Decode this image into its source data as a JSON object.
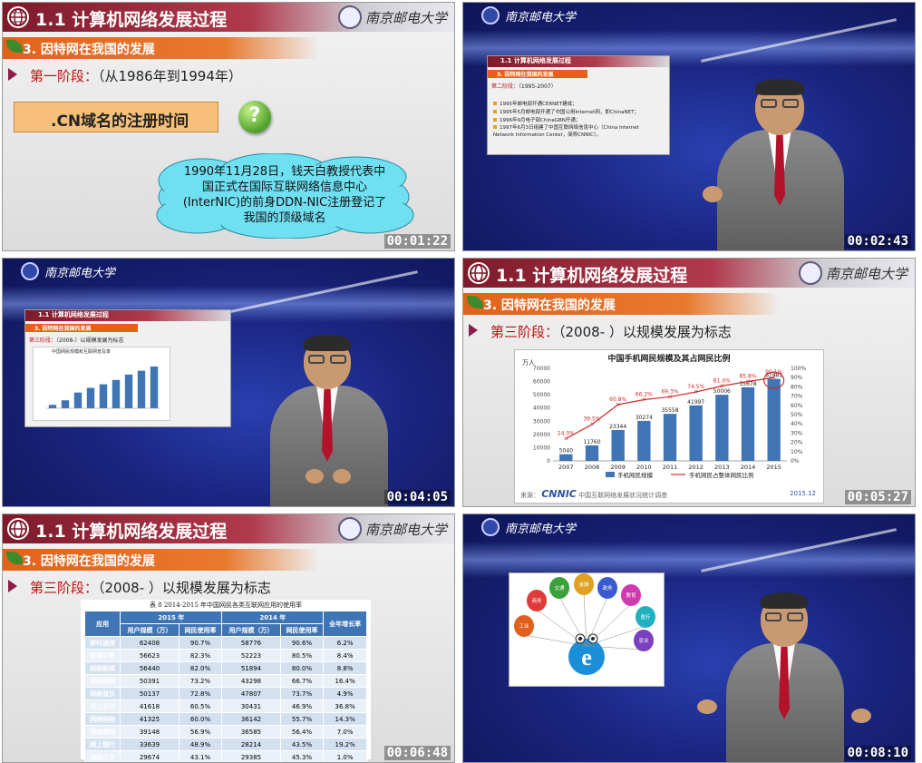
{
  "slide_title": "1.1 计算机网络发展过程",
  "section_title": "3. 因特网在我国的发展",
  "university_name": "南京邮电大学",
  "frames": [
    {
      "timestamp": "00:01:22",
      "stage_label": "第一阶段：",
      "stage_desc": "（从1986年到1994年）",
      "box_text": ".CN域名的注册时间",
      "cloud_text": "1990年11月28日，钱天白教授代表中国正式在国际互联网络信息中心(InterNIC)的前身DDN-NIC注册登记了我国的顶级域名"
    },
    {
      "timestamp": "00:02:43",
      "stage_label": "第二阶段：",
      "stage_desc": "（1995-2007）",
      "bullets": [
        "1995年邮电部开通CERNET建成；",
        "1995年5月邮电部开通了中国公用Internet网，即ChinaNET；",
        "1996年9月电子部ChinaGBN开通；",
        "1997年6月3日组建了中国互联网络信息中心（China Internet Network Information Center，简称CNNIC）。"
      ]
    },
    {
      "timestamp": "00:04:05",
      "stage_label": "第三阶段：",
      "stage_desc": "（2008-）以规模发展为标志",
      "mini_chart_title": "中国网民规模和互联网普及率"
    },
    {
      "timestamp": "00:05:27",
      "stage_label": "第三阶段：",
      "stage_desc": "（2008-  ）以规模发展为标志",
      "source_label": "来源：",
      "source_org": "中国互联网络发展状况统计调查",
      "source_date": "2015.12"
    },
    {
      "timestamp": "00:06:48",
      "stage_label": "第三阶段：",
      "stage_desc": "（2008-  ）以规模发展为标志"
    },
    {
      "timestamp": "00:08:10",
      "balloons": [
        "商务",
        "交通",
        "金融",
        "政务",
        "教育",
        "医疗",
        "工业",
        "农业"
      ]
    }
  ],
  "chart_data": {
    "type": "bar",
    "title": "中国手机网民规模及其占网民比例",
    "ylabel": "万人",
    "categories": [
      "2007",
      "2008",
      "2009",
      "2010",
      "2011",
      "2012",
      "2013",
      "2014",
      "2015"
    ],
    "series": [
      {
        "name": "手机网民规模",
        "type": "bar",
        "values": [
          5040,
          11760,
          23344,
          30274,
          35558,
          41997,
          50006,
          55678,
          61981
        ]
      },
      {
        "name": "手机网民占整体网民比例",
        "type": "line",
        "values": [
          24.0,
          39.5,
          60.8,
          66.2,
          69.3,
          74.5,
          81.0,
          85.8,
          90.1
        ],
        "axis": "right"
      }
    ],
    "y_left": {
      "range": [
        0,
        70000
      ],
      "ticks": [
        "0",
        "10000",
        "20000",
        "30000",
        "40000",
        "50000",
        "60000",
        "70000"
      ]
    },
    "y_right": {
      "range": [
        0,
        100
      ],
      "ticks": [
        "0%",
        "10%",
        "20%",
        "30%",
        "40%",
        "50%",
        "60%",
        "70%",
        "80%",
        "90%",
        "100%"
      ]
    },
    "bar_labels": [
      "5040",
      "11760",
      "23344",
      "30274",
      "35558",
      "41997",
      "50006",
      "55678",
      "61981"
    ],
    "line_labels": [
      "24.0%",
      "39.5%",
      "60.8%",
      "66.2%",
      "69.3%",
      "74.5%",
      "81.0%",
      "85.8%",
      "90.1%"
    ],
    "colors": {
      "bar": "#3f74b5",
      "line": "#d12c2c"
    }
  },
  "usage_table": {
    "caption": "表 8   2014-2015 年中国网民各类互联网应用的使用率",
    "year_headers": [
      "2015 年",
      "2014 年"
    ],
    "col_headers": [
      "应用",
      "用户规模（万）",
      "网民使用率",
      "用户规模（万）",
      "网民使用率",
      "全年增长率"
    ],
    "rows": [
      [
        "即时通信",
        "62408",
        "90.7%",
        "58776",
        "90.6%",
        "6.2%"
      ],
      [
        "搜索引擎",
        "56623",
        "82.3%",
        "52223",
        "80.5%",
        "8.4%"
      ],
      [
        "网络新闻",
        "56440",
        "82.0%",
        "51894",
        "80.0%",
        "8.8%"
      ],
      [
        "网络视频",
        "50391",
        "73.2%",
        "43298",
        "66.7%",
        "16.4%"
      ],
      [
        "网络音乐",
        "50137",
        "72.8%",
        "47807",
        "73.7%",
        "4.9%"
      ],
      [
        "网上支付",
        "41618",
        "60.5%",
        "30431",
        "46.9%",
        "36.8%"
      ],
      [
        "网络购物",
        "41325",
        "60.0%",
        "36142",
        "55.7%",
        "14.3%"
      ],
      [
        "网络游戏",
        "39148",
        "56.9%",
        "36585",
        "56.4%",
        "7.0%"
      ],
      [
        "网上银行",
        "33639",
        "48.9%",
        "28214",
        "43.5%",
        "19.2%"
      ],
      [
        "网络文学",
        "29674",
        "43.1%",
        "29385",
        "45.3%",
        "1.0%"
      ]
    ]
  }
}
